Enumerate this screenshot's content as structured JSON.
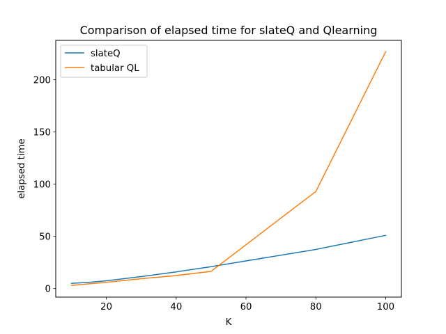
{
  "chart_data": {
    "type": "line",
    "title": "Comparison of elapsed time for slateQ and Qlearning",
    "xlabel": "K",
    "ylabel": "elapsed time",
    "xlim": [
      5.5,
      104.5
    ],
    "ylim": [
      -8.2,
      237.8
    ],
    "xticks": [
      20,
      40,
      60,
      80,
      100
    ],
    "yticks": [
      0,
      50,
      100,
      150,
      200
    ],
    "grid": false,
    "legend_position": "top-left",
    "series": [
      {
        "name": "slateQ",
        "color": "#1f77b4",
        "x": [
          10,
          15,
          20,
          30,
          40,
          50,
          80,
          100
        ],
        "y": [
          5.0,
          6.0,
          7.5,
          11.5,
          16.0,
          21.0,
          37.5,
          51.0
        ]
      },
      {
        "name": "tabular QL",
        "color": "#ff7f0e",
        "x": [
          10,
          20,
          30,
          40,
          50,
          80,
          100
        ],
        "y": [
          3.0,
          6.0,
          9.5,
          12.5,
          16.5,
          93.0,
          227.0
        ]
      }
    ]
  }
}
